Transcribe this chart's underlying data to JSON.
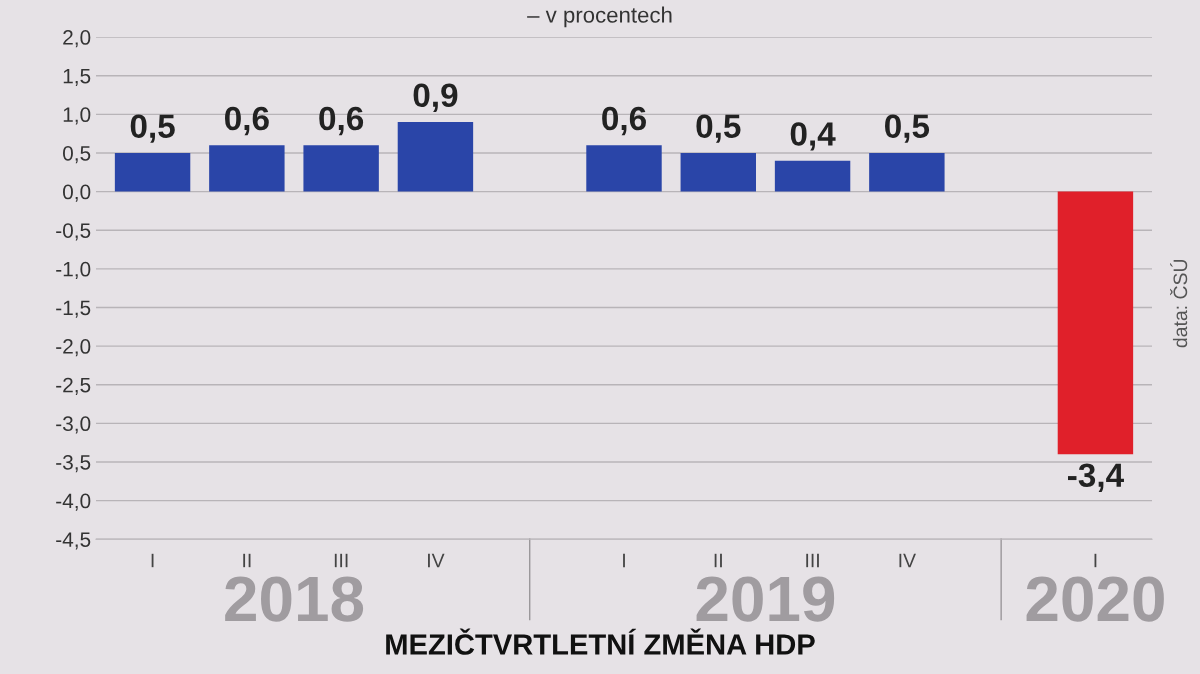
{
  "chart_data": {
    "type": "bar",
    "subtitle": "– v procentech",
    "xlabel": "MEZIČTVRTLETNÍ ZMĚNA HDP",
    "categories": [
      "I",
      "II",
      "III",
      "IV",
      null,
      "I",
      "II",
      "III",
      "IV",
      null,
      "I"
    ],
    "values": [
      0.5,
      0.6,
      0.6,
      0.9,
      null,
      0.6,
      0.5,
      0.4,
      0.5,
      null,
      -3.4
    ],
    "colors": [
      "#2a45a8",
      "#2a45a8",
      "#2a45a8",
      "#2a45a8",
      null,
      "#2a45a8",
      "#2a45a8",
      "#2a45a8",
      "#2a45a8",
      null,
      "#e0202a"
    ],
    "value_labels": [
      "0,5",
      "0,6",
      "0,6",
      "0,9",
      null,
      "0,6",
      "0,5",
      "0,4",
      "0,5",
      null,
      "-3,4"
    ],
    "ylim": [
      -4.5,
      2.0
    ],
    "yticks": [
      {
        "value": 2.0,
        "label": "2,0"
      },
      {
        "value": 1.5,
        "label": "1,5"
      },
      {
        "value": 1.0,
        "label": "1,0"
      },
      {
        "value": 0.5,
        "label": "0,5"
      },
      {
        "value": 0.0,
        "label": "0,0"
      },
      {
        "value": -0.5,
        "label": "-0,5"
      },
      {
        "value": -1.0,
        "label": "-1,0"
      },
      {
        "value": -1.5,
        "label": "-1,5"
      },
      {
        "value": -2.0,
        "label": "-2,0"
      },
      {
        "value": -2.5,
        "label": "-2,5"
      },
      {
        "value": -3.0,
        "label": "-3,0"
      },
      {
        "value": -3.5,
        "label": "-3,5"
      },
      {
        "value": -4.0,
        "label": "-4,0"
      },
      {
        "value": -4.5,
        "label": "-4,5"
      }
    ],
    "grid": "y",
    "annotations": [
      "2018",
      "2019",
      "2020",
      "data: ČSÚ"
    ]
  }
}
